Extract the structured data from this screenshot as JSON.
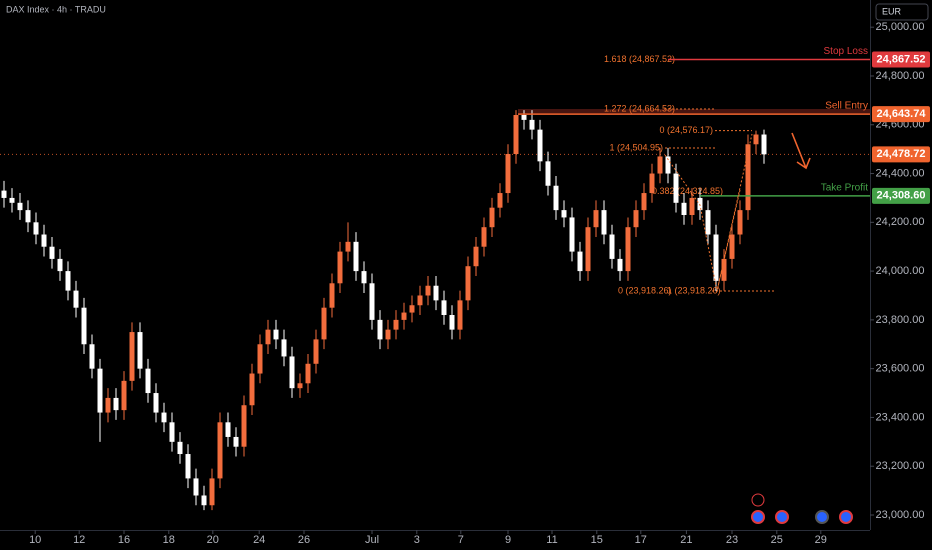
{
  "chart_data": {
    "type": "candlestick",
    "title": "DAX Index · 4h · TRADU",
    "currency": "EUR",
    "up_color": "#f26d3d",
    "down_color": "#ffffff",
    "xlim": [
      -0.5,
      108.25
    ],
    "xticks": [
      {
        "value": 3.9,
        "label": "10"
      },
      {
        "value": 9.4,
        "label": "12"
      },
      {
        "value": 15,
        "label": "16"
      },
      {
        "value": 20.6,
        "label": "18"
      },
      {
        "value": 26.1,
        "label": "20"
      },
      {
        "value": 31.9,
        "label": "24"
      },
      {
        "value": 37.5,
        "label": "26"
      },
      {
        "value": 46,
        "label": "Jul"
      },
      {
        "value": 51.6,
        "label": "3"
      },
      {
        "value": 57.1,
        "label": "7"
      },
      {
        "value": 63,
        "label": "9"
      },
      {
        "value": 68.5,
        "label": "11"
      },
      {
        "value": 74.1,
        "label": "15"
      },
      {
        "value": 79.6,
        "label": "17"
      },
      {
        "value": 85.3,
        "label": "21"
      },
      {
        "value": 91,
        "label": "23"
      },
      {
        "value": 96.6,
        "label": "25"
      },
      {
        "value": 102.1,
        "label": "29"
      }
    ],
    "ylim": [
      22938.5,
      25111.5
    ],
    "yticks": [
      {
        "value": 25000,
        "label": "25,000.00"
      },
      {
        "value": 24800,
        "label": "24,800.00"
      },
      {
        "value": 24600,
        "label": "24,600.00"
      },
      {
        "value": 24400,
        "label": "24,400.00"
      },
      {
        "value": 24200,
        "label": "24,200.00"
      },
      {
        "value": 24000,
        "label": "24,000.00"
      },
      {
        "value": 23800,
        "label": "23,800.00"
      },
      {
        "value": 23600,
        "label": "23,600.00"
      },
      {
        "value": 23400,
        "label": "23,400.00"
      },
      {
        "value": 23200,
        "label": "23,200.00"
      },
      {
        "value": 23000,
        "label": "23,000.00"
      }
    ],
    "ohlc": [
      [
        24330,
        24370,
        24260,
        24300
      ],
      [
        24300,
        24340,
        24240,
        24280
      ],
      [
        24280,
        24320,
        24210,
        24250
      ],
      [
        24250,
        24290,
        24160,
        24200
      ],
      [
        24200,
        24240,
        24110,
        24150
      ],
      [
        24150,
        24190,
        24060,
        24100
      ],
      [
        24100,
        24140,
        24010,
        24050
      ],
      [
        24050,
        24090,
        23960,
        24000
      ],
      [
        24000,
        24040,
        23880,
        23920
      ],
      [
        23920,
        23960,
        23810,
        23850
      ],
      [
        23850,
        23890,
        23660,
        23700
      ],
      [
        23700,
        23740,
        23560,
        23600
      ],
      [
        23600,
        23640,
        23300,
        23420
      ],
      [
        23420,
        23520,
        23380,
        23480
      ],
      [
        23480,
        23520,
        23390,
        23430
      ],
      [
        23430,
        23590,
        23390,
        23550
      ],
      [
        23550,
        23790,
        23510,
        23750
      ],
      [
        23750,
        23790,
        23560,
        23600
      ],
      [
        23600,
        23640,
        23460,
        23500
      ],
      [
        23500,
        23540,
        23380,
        23420
      ],
      [
        23420,
        23460,
        23340,
        23380
      ],
      [
        23380,
        23420,
        23260,
        23300
      ],
      [
        23300,
        23340,
        23210,
        23250
      ],
      [
        23250,
        23290,
        23110,
        23150
      ],
      [
        23150,
        23190,
        23040,
        23080
      ],
      [
        23080,
        23120,
        23020,
        23040
      ],
      [
        23040,
        23190,
        23020,
        23150
      ],
      [
        23150,
        23420,
        23110,
        23380
      ],
      [
        23380,
        23420,
        23280,
        23320
      ],
      [
        23320,
        23360,
        23240,
        23280
      ],
      [
        23280,
        23490,
        23240,
        23450
      ],
      [
        23450,
        23620,
        23410,
        23580
      ],
      [
        23580,
        23740,
        23540,
        23700
      ],
      [
        23700,
        23800,
        23660,
        23760
      ],
      [
        23760,
        23800,
        23680,
        23720
      ],
      [
        23720,
        23760,
        23610,
        23650
      ],
      [
        23650,
        23690,
        23480,
        23520
      ],
      [
        23520,
        23580,
        23480,
        23540
      ],
      [
        23540,
        23660,
        23500,
        23620
      ],
      [
        23620,
        23760,
        23580,
        23720
      ],
      [
        23720,
        23890,
        23680,
        23850
      ],
      [
        23850,
        23990,
        23810,
        23950
      ],
      [
        23950,
        24120,
        23910,
        24080
      ],
      [
        24080,
        24200,
        24040,
        24120
      ],
      [
        24120,
        24160,
        23960,
        24000
      ],
      [
        24000,
        24040,
        23910,
        23950
      ],
      [
        23950,
        23990,
        23760,
        23800
      ],
      [
        23800,
        23840,
        23680,
        23720
      ],
      [
        23720,
        23800,
        23680,
        23760
      ],
      [
        23760,
        23840,
        23720,
        23800
      ],
      [
        23800,
        23870,
        23760,
        23830
      ],
      [
        23830,
        23900,
        23790,
        23860
      ],
      [
        23860,
        23940,
        23820,
        23900
      ],
      [
        23900,
        23980,
        23860,
        23940
      ],
      [
        23940,
        23980,
        23840,
        23880
      ],
      [
        23880,
        23920,
        23780,
        23820
      ],
      [
        23820,
        23860,
        23720,
        23760
      ],
      [
        23760,
        23920,
        23720,
        23880
      ],
      [
        23880,
        24060,
        23840,
        24020
      ],
      [
        24020,
        24140,
        23980,
        24100
      ],
      [
        24100,
        24220,
        24060,
        24180
      ],
      [
        24180,
        24300,
        24140,
        24260
      ],
      [
        24260,
        24360,
        24220,
        24320
      ],
      [
        24320,
        24520,
        24280,
        24480
      ],
      [
        24480,
        24660,
        24440,
        24640
      ],
      [
        24640,
        24660,
        24580,
        24620
      ],
      [
        24620,
        24660,
        24540,
        24580
      ],
      [
        24580,
        24620,
        24410,
        24450
      ],
      [
        24450,
        24490,
        24310,
        24350
      ],
      [
        24350,
        24390,
        24210,
        24250
      ],
      [
        24250,
        24290,
        24180,
        24220
      ],
      [
        24220,
        24260,
        24040,
        24080
      ],
      [
        24080,
        24120,
        23960,
        24000
      ],
      [
        24000,
        24220,
        23960,
        24180
      ],
      [
        24180,
        24290,
        24140,
        24250
      ],
      [
        24250,
        24290,
        24110,
        24150
      ],
      [
        24150,
        24190,
        24010,
        24050
      ],
      [
        24050,
        24090,
        23960,
        24000
      ],
      [
        24000,
        24220,
        23960,
        24180
      ],
      [
        24180,
        24290,
        24140,
        24250
      ],
      [
        24250,
        24360,
        24210,
        24320
      ],
      [
        24320,
        24440,
        24280,
        24400
      ],
      [
        24400,
        24505,
        24360,
        24470
      ],
      [
        24470,
        24505,
        24360,
        24400
      ],
      [
        24400,
        24440,
        24240,
        24280
      ],
      [
        24280,
        24320,
        24190,
        24230
      ],
      [
        24230,
        24340,
        24190,
        24300
      ],
      [
        24300,
        24340,
        24210,
        24250
      ],
      [
        24250,
        24290,
        24110,
        24150
      ],
      [
        24150,
        24190,
        23918,
        23960
      ],
      [
        23960,
        24090,
        23920,
        24050
      ],
      [
        24050,
        24190,
        24010,
        24150
      ],
      [
        24150,
        24290,
        24110,
        24250
      ],
      [
        24250,
        24560,
        24210,
        24520
      ],
      [
        24520,
        24576,
        24480,
        24560
      ],
      [
        24560,
        24580,
        24440,
        24478.72
      ]
    ],
    "levels": [
      {
        "name": "Stop Loss",
        "value": 24867.52,
        "label": "24,867.52",
        "color": "#e03a3e"
      },
      {
        "name": "Sell Entry",
        "value": 24643.74,
        "label": "24,643.74",
        "color": "#f0642e"
      },
      {
        "name": "Take Profit",
        "value": 24308.6,
        "label": "24,308.60",
        "color": "#43a047"
      }
    ],
    "last_price": {
      "value": 24478.72,
      "label": "24,478.72",
      "color": "#f0642e"
    },
    "fib_labels": [
      {
        "text": "1.618 (24,867.52)",
        "value": 24867.52
      },
      {
        "text": "1.272 (24,664.53)",
        "value": 24664.53
      },
      {
        "text": "0 (24,576.17)",
        "value": 24576.17
      },
      {
        "text": "1 (24,504.95)",
        "value": 24504.95
      },
      {
        "text": "0.382 (24,324.85)",
        "value": 24324.85
      },
      {
        "text": "0 (23,918.26)",
        "value": 23918.26
      },
      {
        "text": "1 (23,918.26)",
        "value": 23918.26
      }
    ]
  }
}
